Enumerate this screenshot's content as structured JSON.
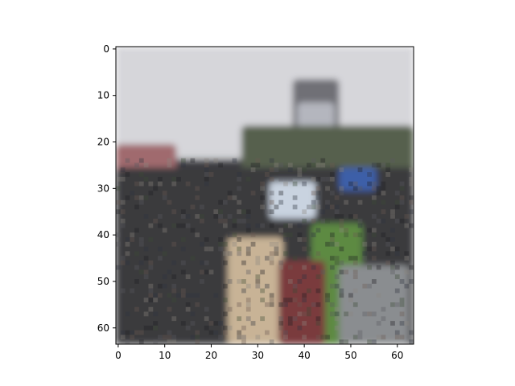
{
  "chart_data": {
    "type": "image",
    "title": "",
    "xlabel": "",
    "ylabel": "",
    "xlim": [
      -0.5,
      63.5
    ],
    "ylim": [
      63.5,
      -0.5
    ],
    "xticks": [
      0,
      10,
      20,
      30,
      40,
      50,
      60
    ],
    "yticks": [
      0,
      10,
      20,
      30,
      40,
      50,
      60
    ],
    "image_grid": {
      "rows": 64,
      "cols": 64
    },
    "grid": false,
    "image_content": "pixelated photo of an outdoor crowd of people standing on grass under an overcast sky, with a tall dark tower structure and trees in the background",
    "regions": [
      {
        "name": "sky",
        "rows": [
          0,
          22
        ],
        "cols": [
          0,
          63
        ],
        "color": "#d6d6da"
      },
      {
        "name": "tower",
        "rows": [
          7,
          22
        ],
        "cols": [
          38,
          47
        ],
        "color": "#6f7076"
      },
      {
        "name": "tower-panel",
        "rows": [
          12,
          19
        ],
        "cols": [
          39,
          46
        ],
        "color": "#b4b6be"
      },
      {
        "name": "trees-left",
        "rows": [
          21,
          27
        ],
        "cols": [
          0,
          12
        ],
        "color": "#a06a6e"
      },
      {
        "name": "trees-right",
        "rows": [
          17,
          28
        ],
        "cols": [
          27,
          63
        ],
        "color": "#56604e"
      },
      {
        "name": "crowd",
        "rows": [
          26,
          63
        ],
        "cols": [
          0,
          63
        ],
        "color": "#3a3a3d"
      },
      {
        "name": "grass",
        "rows": [
          38,
          63
        ],
        "cols": [
          42,
          52
        ],
        "color": "#5d8a42"
      },
      {
        "name": "person-beige",
        "rows": [
          41,
          63
        ],
        "cols": [
          24,
          35
        ],
        "color": "#c8b396"
      },
      {
        "name": "person-red",
        "rows": [
          46,
          63
        ],
        "cols": [
          35,
          44
        ],
        "color": "#7a3a3e"
      },
      {
        "name": "person-striped",
        "rows": [
          47,
          63
        ],
        "cols": [
          48,
          62
        ],
        "color": "#8a8d90"
      },
      {
        "name": "umbrella-blue",
        "rows": [
          26,
          30
        ],
        "cols": [
          48,
          55
        ],
        "color": "#3d5fa8"
      },
      {
        "name": "umbrella-white",
        "rows": [
          29,
          36
        ],
        "cols": [
          33,
          42
        ],
        "color": "#c9d3e0"
      }
    ]
  }
}
